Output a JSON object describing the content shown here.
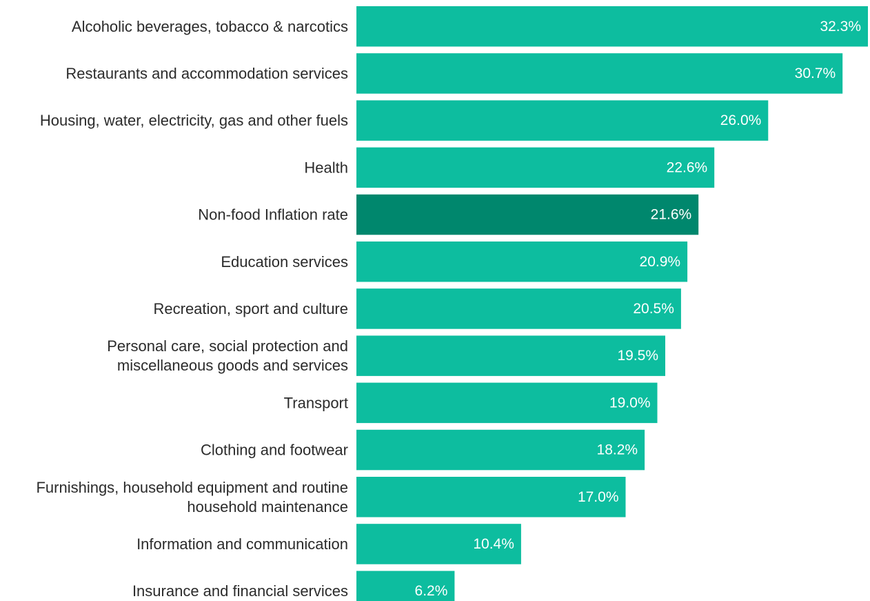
{
  "chart_data": {
    "type": "bar",
    "orientation": "horizontal",
    "categories": [
      [
        "Alcoholic beverages, tobacco & narcotics"
      ],
      [
        "Restaurants and accommodation services"
      ],
      [
        "Housing, water, electricity, gas and other fuels"
      ],
      [
        "Health"
      ],
      [
        "Non-food Inflation rate"
      ],
      [
        "Education services"
      ],
      [
        "Recreation, sport and culture"
      ],
      [
        "Personal care, social protection and",
        "miscellaneous goods and services"
      ],
      [
        "Transport"
      ],
      [
        "Clothing and footwear"
      ],
      [
        "Furnishings, household equipment and routine",
        "household maintenance"
      ],
      [
        "Information and communication"
      ],
      [
        "Insurance and financial services"
      ]
    ],
    "values": [
      32.3,
      30.7,
      26.0,
      22.6,
      21.6,
      20.9,
      20.5,
      19.5,
      19.0,
      18.2,
      17.0,
      10.4,
      6.2
    ],
    "value_labels": [
      "32.3%",
      "30.7%",
      "26.0%",
      "22.6%",
      "21.6%",
      "20.9%",
      "20.5%",
      "19.5%",
      "19.0%",
      "18.2%",
      "17.0%",
      "10.4%",
      "6.2%"
    ],
    "highlight_category": "Non-food Inflation rate",
    "colors": {
      "bar": "#0dbd9f",
      "highlight": "#00876d",
      "value_text": "#ffffff",
      "label_text": "#2b2b2b"
    },
    "xlim": [
      0,
      32.3
    ],
    "grid": false,
    "legend": "none"
  }
}
